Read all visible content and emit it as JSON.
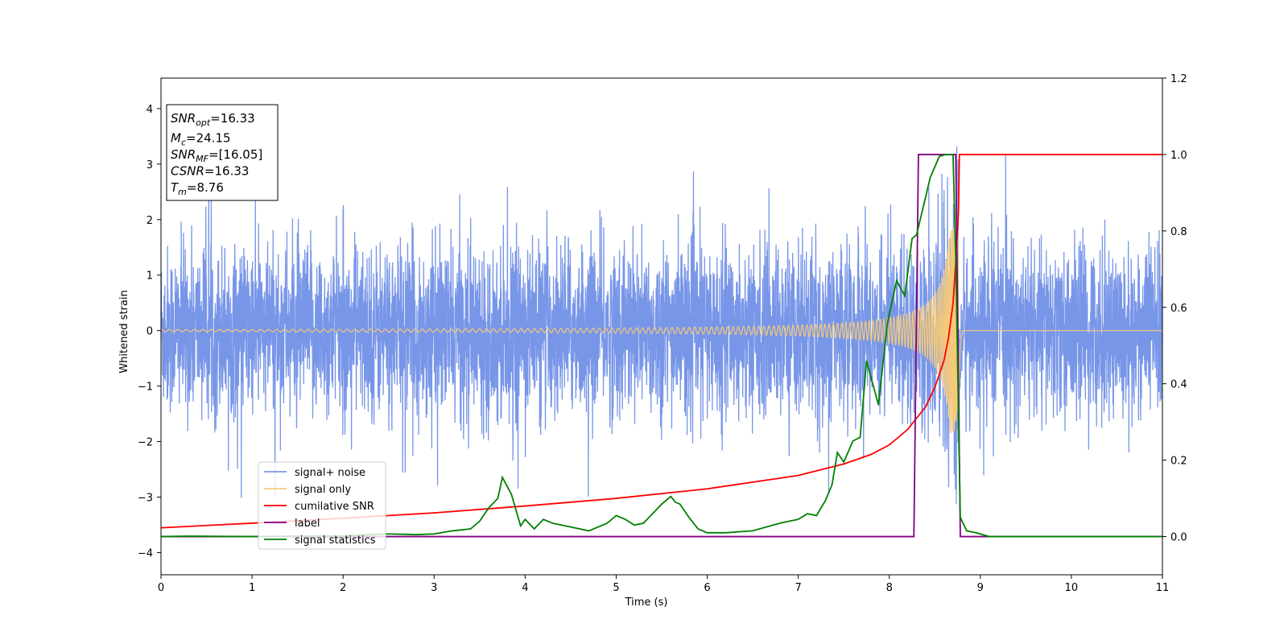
{
  "chart_data": {
    "type": "line",
    "title": "",
    "xlabel": "Time (s)",
    "ylabel": "Whitened strain",
    "xlim": [
      0,
      11
    ],
    "ylim_left": [
      -4.4,
      4.55
    ],
    "ylim_right": [
      -0.1,
      1.2
    ],
    "xticks": [
      "0",
      "1",
      "2",
      "3",
      "4",
      "5",
      "6",
      "7",
      "8",
      "9",
      "10",
      "11"
    ],
    "yticks_left": [
      "−4",
      "−3",
      "−2",
      "−1",
      "0",
      "1",
      "2",
      "3",
      "4"
    ],
    "yticks_right": [
      "0.0",
      "0.2",
      "0.4",
      "0.6",
      "0.8",
      "1.0",
      "1.2"
    ],
    "grid": false,
    "legend_position": "lower-left",
    "annotation": {
      "lines": [
        {
          "name": "SNR",
          "sub": "opt",
          "value": "=16.33"
        },
        {
          "name": "M",
          "sub": "c",
          "value": "=24.15"
        },
        {
          "name": "SNR",
          "sub": "MF",
          "value": "=[16.05]"
        },
        {
          "name": "CSNR",
          "sub": "",
          "value": "=16.33"
        },
        {
          "name": "T",
          "sub": "m",
          "value": "=8.76"
        }
      ]
    },
    "series": [
      {
        "name": "signal+ noise",
        "color": "#7896e8",
        "axis": "left",
        "description_values": {
          "noise_amplitude_typical": 1.0,
          "peaks_max": 3.4,
          "peaks_min": -3.0
        }
      },
      {
        "name": "signal only",
        "color": "#f5c97a",
        "axis": "left",
        "chirp": {
          "start_amplitude": 0.02,
          "peak_amplitude": 1.85,
          "merger_time": 8.76,
          "ringdown_end": 8.8
        }
      },
      {
        "name": "cumilative SNR",
        "color": "#ff0000",
        "axis": "right",
        "x": [
          0,
          1,
          2,
          3,
          4,
          5,
          6,
          7,
          7.5,
          7.8,
          8.0,
          8.2,
          8.4,
          8.5,
          8.6,
          8.65,
          8.7,
          8.73,
          8.76,
          8.77,
          11
        ],
        "y": [
          0.023,
          0.035,
          0.048,
          0.062,
          0.08,
          0.1,
          0.125,
          0.16,
          0.19,
          0.215,
          0.24,
          0.28,
          0.34,
          0.39,
          0.46,
          0.52,
          0.61,
          0.72,
          0.85,
          1.0,
          1.0
        ]
      },
      {
        "name": "label",
        "color": "#800080",
        "axis": "right",
        "x": [
          0,
          8.27,
          8.32,
          8.73,
          8.78,
          11
        ],
        "y": [
          0,
          0,
          1,
          1,
          0,
          0
        ]
      },
      {
        "name": "signal statistics",
        "color": "#008000",
        "axis": "right",
        "x": [
          0,
          0.3,
          1.0,
          2.0,
          2.5,
          2.8,
          3.0,
          3.2,
          3.4,
          3.5,
          3.6,
          3.7,
          3.75,
          3.85,
          3.95,
          4.0,
          4.1,
          4.2,
          4.3,
          4.5,
          4.7,
          4.9,
          5.0,
          5.1,
          5.2,
          5.3,
          5.5,
          5.6,
          5.65,
          5.7,
          5.8,
          5.9,
          6.0,
          6.2,
          6.5,
          6.8,
          7.0,
          7.1,
          7.2,
          7.3,
          7.37,
          7.43,
          7.5,
          7.6,
          7.68,
          7.75,
          7.88,
          7.98,
          8.08,
          8.17,
          8.25,
          8.3,
          8.45,
          8.55,
          8.62,
          8.7,
          8.73,
          8.78,
          8.85,
          8.95,
          9.1,
          11
        ],
        "y": [
          0,
          0.001,
          0,
          0.002,
          0.007,
          0.005,
          0.007,
          0.015,
          0.02,
          0.04,
          0.075,
          0.1,
          0.155,
          0.11,
          0.028,
          0.045,
          0.02,
          0.045,
          0.035,
          0.025,
          0.015,
          0.035,
          0.055,
          0.045,
          0.03,
          0.035,
          0.085,
          0.105,
          0.09,
          0.085,
          0.05,
          0.02,
          0.01,
          0.01,
          0.015,
          0.035,
          0.045,
          0.06,
          0.055,
          0.095,
          0.135,
          0.22,
          0.195,
          0.25,
          0.26,
          0.46,
          0.345,
          0.56,
          0.67,
          0.63,
          0.78,
          0.79,
          0.94,
          0.995,
          1.0,
          1.0,
          0.73,
          0.05,
          0.015,
          0.01,
          0.0,
          0.0
        ]
      }
    ]
  }
}
